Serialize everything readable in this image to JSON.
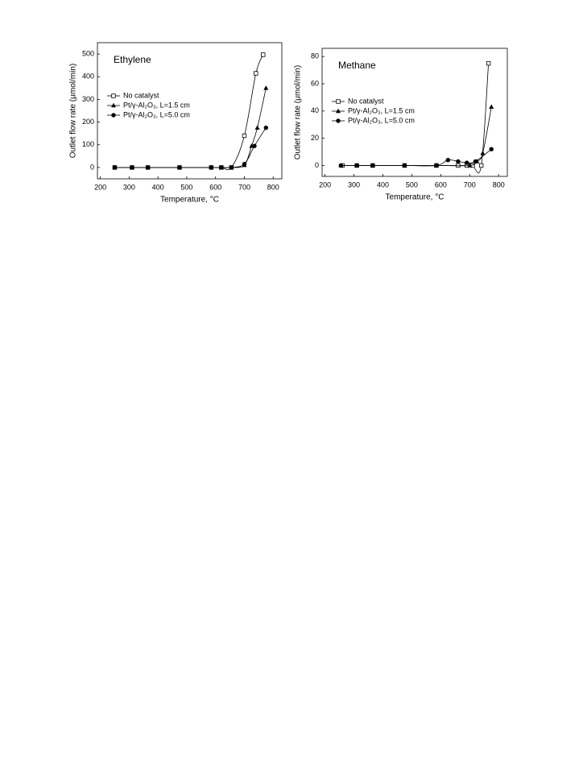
{
  "chart_data": [
    {
      "type": "line",
      "title": "Ethylene",
      "xlabel": "Temperature, °C",
      "ylabel": "Outlet flow rate (μmol/min)",
      "xlim": [
        190,
        830
      ],
      "ylim": [
        -50,
        550
      ],
      "xticks": [
        200,
        300,
        400,
        500,
        600,
        700,
        800
      ],
      "yticks": [
        0,
        100,
        200,
        300,
        400,
        500
      ],
      "series": [
        {
          "name": "No catalyst",
          "color": "#000000",
          "marker": "square-open",
          "x": [
            250,
            310,
            365,
            475,
            585,
            620,
            655,
            700,
            740,
            765
          ],
          "values": [
            0,
            0,
            0,
            0,
            0,
            0,
            0,
            140,
            415,
            497
          ]
        },
        {
          "name": "Pt/γ-Al₂O₃, L=1.5 cm",
          "color": "#000000",
          "marker": "triangle",
          "x": [
            250,
            310,
            365,
            475,
            585,
            620,
            655,
            700,
            725,
            745,
            775
          ],
          "values": [
            0,
            0,
            0,
            0,
            0,
            0,
            0,
            10,
            95,
            175,
            350
          ]
        },
        {
          "name": "Pt/γ-Al₂O₃, L=5.0 cm",
          "color": "#000000",
          "marker": "circle",
          "x": [
            250,
            310,
            365,
            475,
            585,
            620,
            655,
            700,
            735,
            775
          ],
          "values": [
            0,
            0,
            0,
            0,
            0,
            0,
            0,
            15,
            95,
            175
          ]
        }
      ]
    },
    {
      "type": "line",
      "title": "Methane",
      "xlabel": "Temperature, °C",
      "ylabel": "Outlet flow rate (μmol/min)",
      "xlim": [
        190,
        830
      ],
      "ylim": [
        -8,
        86
      ],
      "xticks": [
        200,
        300,
        400,
        500,
        600,
        700,
        800
      ],
      "yticks": [
        0,
        20,
        40,
        60,
        80
      ],
      "series": [
        {
          "name": "No catalyst",
          "color": "#000000",
          "marker": "square-open",
          "x": [
            260,
            310,
            365,
            475,
            585,
            660,
            690,
            710,
            740,
            765
          ],
          "values": [
            0,
            0,
            0,
            0,
            0,
            0,
            0,
            0,
            0,
            75
          ]
        },
        {
          "name": "Pt/γ-Al₂O₃, L=1.5 cm",
          "color": "#000000",
          "marker": "triangle",
          "x": [
            255,
            310,
            365,
            475,
            585,
            700,
            725,
            745,
            775
          ],
          "values": [
            0,
            0,
            0,
            0,
            0,
            0,
            3,
            9,
            43
          ]
        },
        {
          "name": "Pt/γ-Al₂O₃, L=5.0 cm",
          "color": "#000000",
          "marker": "circle",
          "x": [
            255,
            310,
            365,
            475,
            585,
            625,
            660,
            690,
            720,
            775
          ],
          "values": [
            0,
            0,
            0,
            0,
            0,
            4,
            3,
            2,
            3,
            12
          ]
        }
      ]
    }
  ]
}
